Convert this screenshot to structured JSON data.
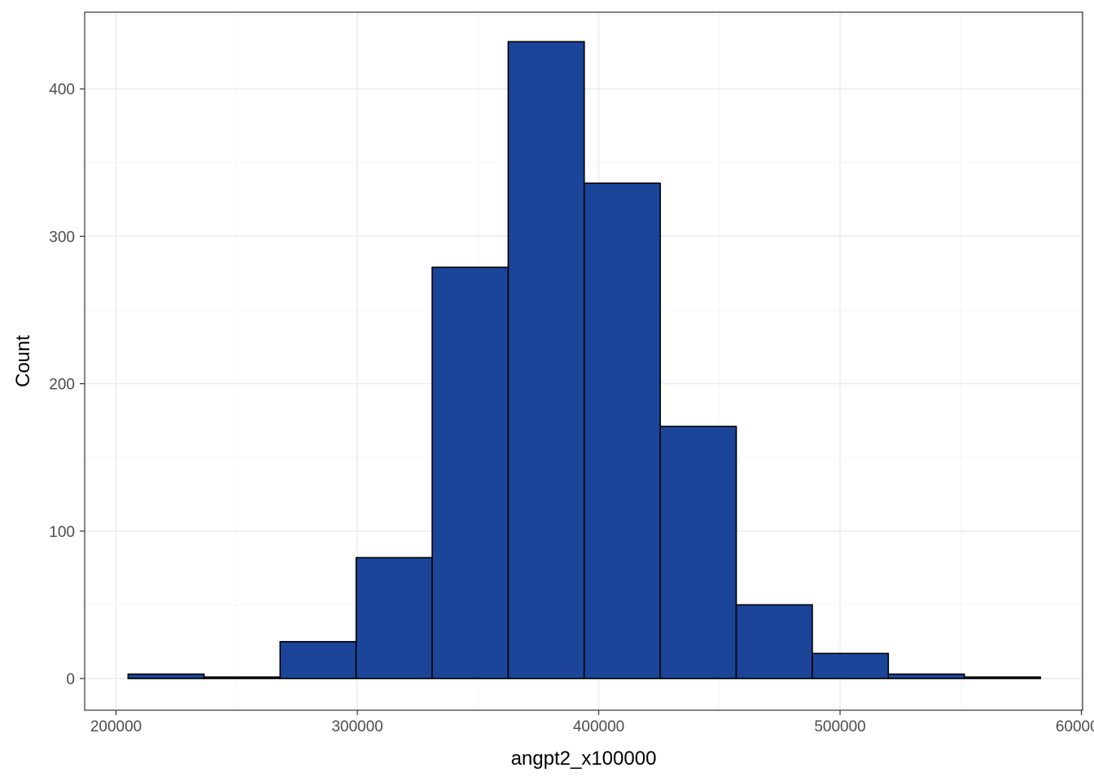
{
  "chart_data": {
    "type": "bar",
    "title": "",
    "xlabel": "angpt2_x100000",
    "ylabel": "Count",
    "xlim": [
      187000,
      600500
    ],
    "ylim": [
      -21.5,
      452
    ],
    "x_ticks": [
      200000,
      300000,
      400000,
      500000,
      600000
    ],
    "x_tick_labels": [
      "200000",
      "300000",
      "400000",
      "500000",
      "600000"
    ],
    "y_ticks": [
      0,
      100,
      200,
      300,
      400
    ],
    "y_tick_labels": [
      "0",
      "100",
      "200",
      "300",
      "400"
    ],
    "grid": true,
    "bins": [
      {
        "x0": 205000,
        "x1": 236500,
        "count": 3
      },
      {
        "x0": 236500,
        "x1": 268000,
        "count": 1
      },
      {
        "x0": 268000,
        "x1": 299500,
        "count": 25
      },
      {
        "x0": 299500,
        "x1": 331000,
        "count": 82
      },
      {
        "x0": 331000,
        "x1": 362500,
        "count": 279
      },
      {
        "x0": 362500,
        "x1": 394000,
        "count": 432
      },
      {
        "x0": 394000,
        "x1": 425500,
        "count": 336
      },
      {
        "x0": 425500,
        "x1": 457000,
        "count": 171
      },
      {
        "x0": 457000,
        "x1": 488500,
        "count": 50
      },
      {
        "x0": 488500,
        "x1": 520000,
        "count": 17
      },
      {
        "x0": 520000,
        "x1": 551500,
        "count": 3
      },
      {
        "x0": 551500,
        "x1": 583000,
        "count": 1
      }
    ],
    "colors": {
      "bar_fill": "#1A4599",
      "bar_stroke": "#000000",
      "grid_major": "#EBEBEB",
      "grid_minor": "#F5F5F5",
      "panel_border": "#333333"
    }
  }
}
